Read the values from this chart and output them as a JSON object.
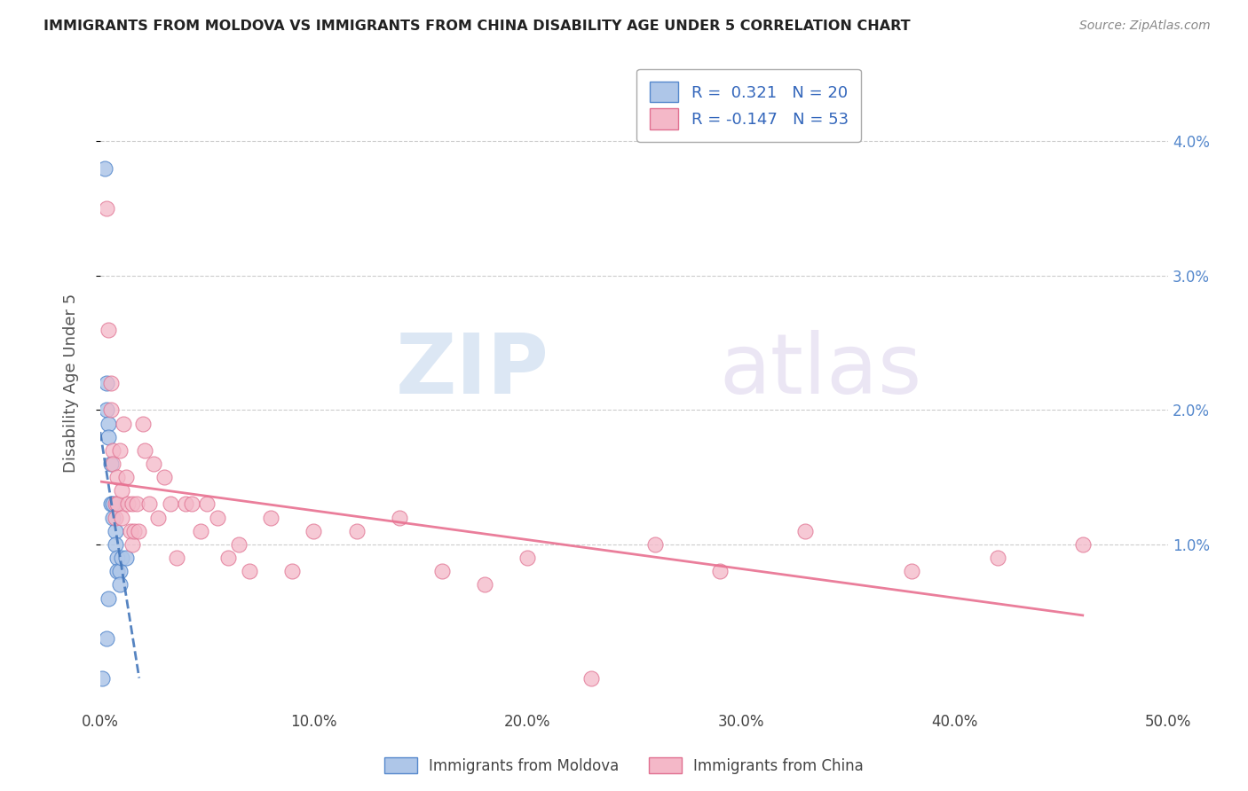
{
  "title": "IMMIGRANTS FROM MOLDOVA VS IMMIGRANTS FROM CHINA DISABILITY AGE UNDER 5 CORRELATION CHART",
  "source": "Source: ZipAtlas.com",
  "xlim": [
    0.0,
    0.5
  ],
  "ylim": [
    -0.002,
    0.046
  ],
  "ylabel_ticks": [
    0.01,
    0.02,
    0.03,
    0.04
  ],
  "ylabel_tick_labels_right": [
    "1.0%",
    "2.0%",
    "3.0%",
    "4.0%"
  ],
  "xlabel_ticks": [
    0.0,
    0.1,
    0.2,
    0.3,
    0.4,
    0.5
  ],
  "xlabel_tick_labels": [
    "0.0%",
    "10.0%",
    "20.0%",
    "30.0%",
    "40.0%",
    "50.0%"
  ],
  "moldova_color": "#aec6e8",
  "moldova_edge_color": "#5588cc",
  "china_color": "#f4b8c8",
  "china_edge_color": "#e07090",
  "moldova_trendline_color": "#4477bb",
  "china_trendline_color": "#e87090",
  "legend_label1": "R =  0.321   N = 20",
  "legend_label2": "R = -0.147   N = 53",
  "ylabel": "Disability Age Under 5",
  "watermark_zip": "ZIP",
  "watermark_atlas": "atlas",
  "moldova_x": [
    0.001,
    0.002,
    0.003,
    0.003,
    0.004,
    0.004,
    0.004,
    0.005,
    0.005,
    0.006,
    0.006,
    0.007,
    0.007,
    0.008,
    0.008,
    0.009,
    0.009,
    0.01,
    0.012,
    0.003
  ],
  "moldova_y": [
    0.0,
    0.038,
    0.022,
    0.02,
    0.019,
    0.018,
    0.006,
    0.016,
    0.013,
    0.013,
    0.012,
    0.011,
    0.01,
    0.009,
    0.008,
    0.008,
    0.007,
    0.009,
    0.009,
    0.003
  ],
  "china_x": [
    0.003,
    0.004,
    0.005,
    0.005,
    0.006,
    0.006,
    0.007,
    0.007,
    0.008,
    0.008,
    0.009,
    0.01,
    0.01,
    0.011,
    0.012,
    0.013,
    0.014,
    0.015,
    0.015,
    0.016,
    0.017,
    0.018,
    0.02,
    0.021,
    0.023,
    0.025,
    0.027,
    0.03,
    0.033,
    0.036,
    0.04,
    0.043,
    0.047,
    0.05,
    0.055,
    0.06,
    0.065,
    0.07,
    0.08,
    0.09,
    0.1,
    0.12,
    0.14,
    0.16,
    0.18,
    0.2,
    0.23,
    0.26,
    0.29,
    0.33,
    0.38,
    0.42,
    0.46
  ],
  "china_y": [
    0.035,
    0.026,
    0.022,
    0.02,
    0.017,
    0.016,
    0.013,
    0.012,
    0.015,
    0.013,
    0.017,
    0.014,
    0.012,
    0.019,
    0.015,
    0.013,
    0.011,
    0.013,
    0.01,
    0.011,
    0.013,
    0.011,
    0.019,
    0.017,
    0.013,
    0.016,
    0.012,
    0.015,
    0.013,
    0.009,
    0.013,
    0.013,
    0.011,
    0.013,
    0.012,
    0.009,
    0.01,
    0.008,
    0.012,
    0.008,
    0.011,
    0.011,
    0.012,
    0.008,
    0.007,
    0.009,
    0.0,
    0.01,
    0.008,
    0.011,
    0.008,
    0.009,
    0.01
  ]
}
